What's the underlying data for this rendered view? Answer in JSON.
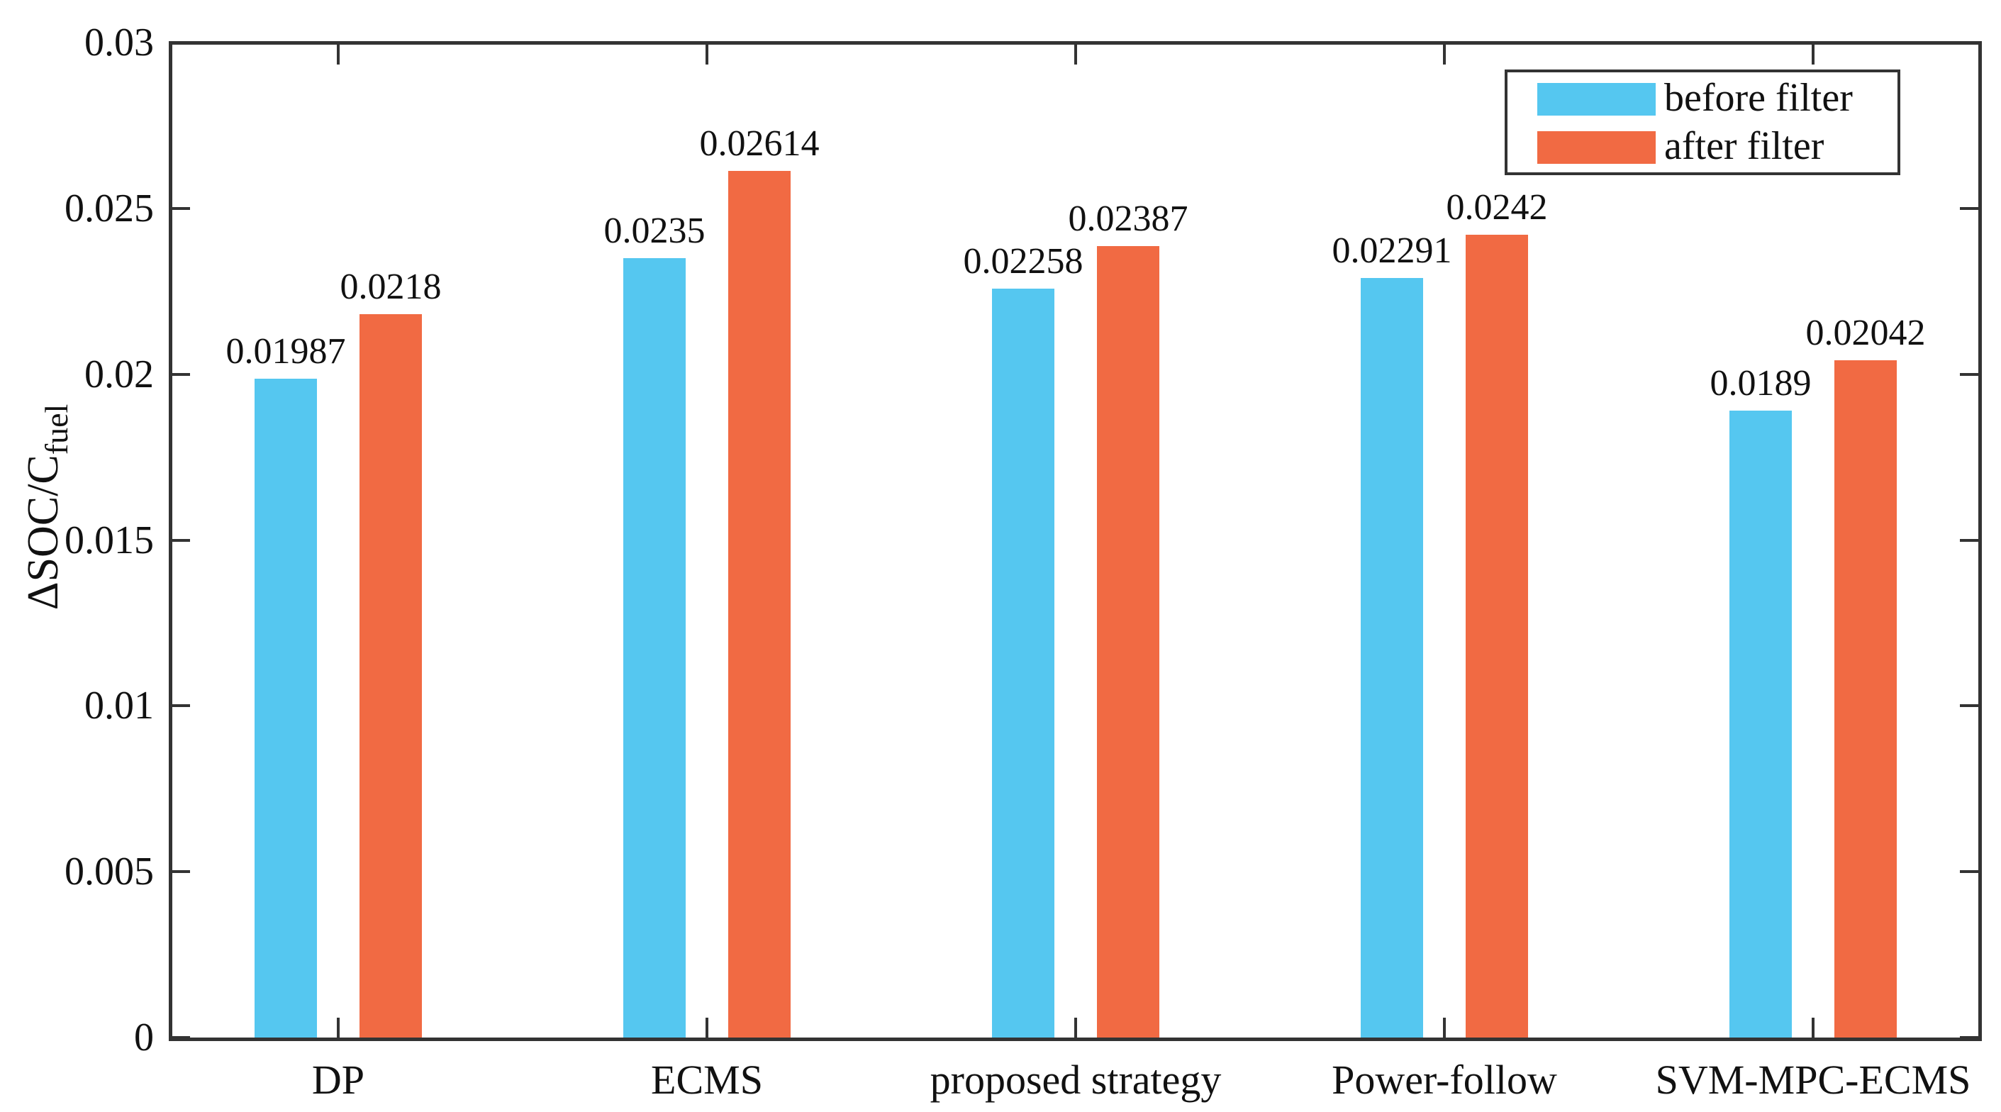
{
  "figure": {
    "background": "#ffffff",
    "axis_color": "#333333",
    "text_color": "#111111"
  },
  "chart_data": {
    "type": "bar",
    "title": "",
    "xlabel": "",
    "ylabel": "ΔSOC/C",
    "ylabel_subscript": "fuel",
    "categories": [
      "DP",
      "ECMS",
      "proposed strategy",
      "Power-follow",
      "SVM-MPC-ECMS"
    ],
    "series": [
      {
        "name": "before filter",
        "color": "#55C7F0",
        "values": [
          0.01987,
          0.0235,
          0.02258,
          0.02291,
          0.0189
        ],
        "labels": [
          "0.01987",
          "0.0235",
          "0.02258",
          "0.02291",
          "0.0189"
        ]
      },
      {
        "name": "after filter",
        "color": "#F16A43",
        "values": [
          0.0218,
          0.02614,
          0.02387,
          0.0242,
          0.02042
        ],
        "labels": [
          "0.0218",
          "0.02614",
          "0.02387",
          "0.0242",
          "0.02042"
        ]
      }
    ],
    "ylim": [
      0,
      0.03
    ],
    "yticks": [
      0,
      0.005,
      0.01,
      0.015,
      0.02,
      0.025,
      0.03
    ],
    "ytick_labels": [
      "0",
      "0.005",
      "0.01",
      "0.015",
      "0.02",
      "0.025",
      "0.03"
    ],
    "grid": false,
    "legend_position": "top-right"
  }
}
